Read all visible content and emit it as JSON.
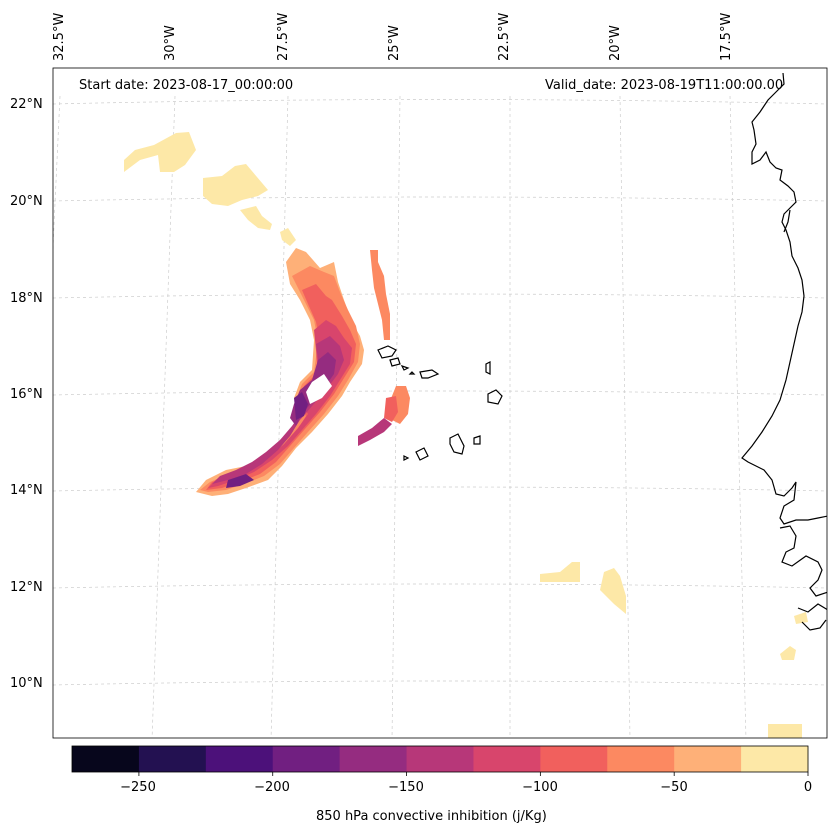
{
  "map": {
    "start_label": "Start date: 2023-08-17_00:00:00",
    "valid_label": "Valid_date: 2023-08-19T11:00:00.00",
    "lon_labels": [
      "32.5°W",
      "30°W",
      "27.5°W",
      "25°W",
      "22.5°W",
      "20°W",
      "17.5°W"
    ],
    "lat_labels": [
      "22°N",
      "20°N",
      "18°N",
      "16°N",
      "14°N",
      "12°N",
      "10°N"
    ]
  },
  "colorbar": {
    "label": "850 hPa convective inhibition (j/Kg)",
    "ticks": [
      "−250",
      "−200",
      "−150",
      "−100",
      "−50",
      "0"
    ],
    "levels": [
      -275,
      -250,
      -225,
      -200,
      -175,
      -150,
      -125,
      -100,
      -75,
      -50,
      -25,
      0
    ],
    "colors": [
      "#07061c",
      "#231151",
      "#4c117a",
      "#711f81",
      "#952c80",
      "#b73779",
      "#d8456c",
      "#f1605d",
      "#fc8961",
      "#feb078",
      "#fde8a7"
    ]
  }
}
